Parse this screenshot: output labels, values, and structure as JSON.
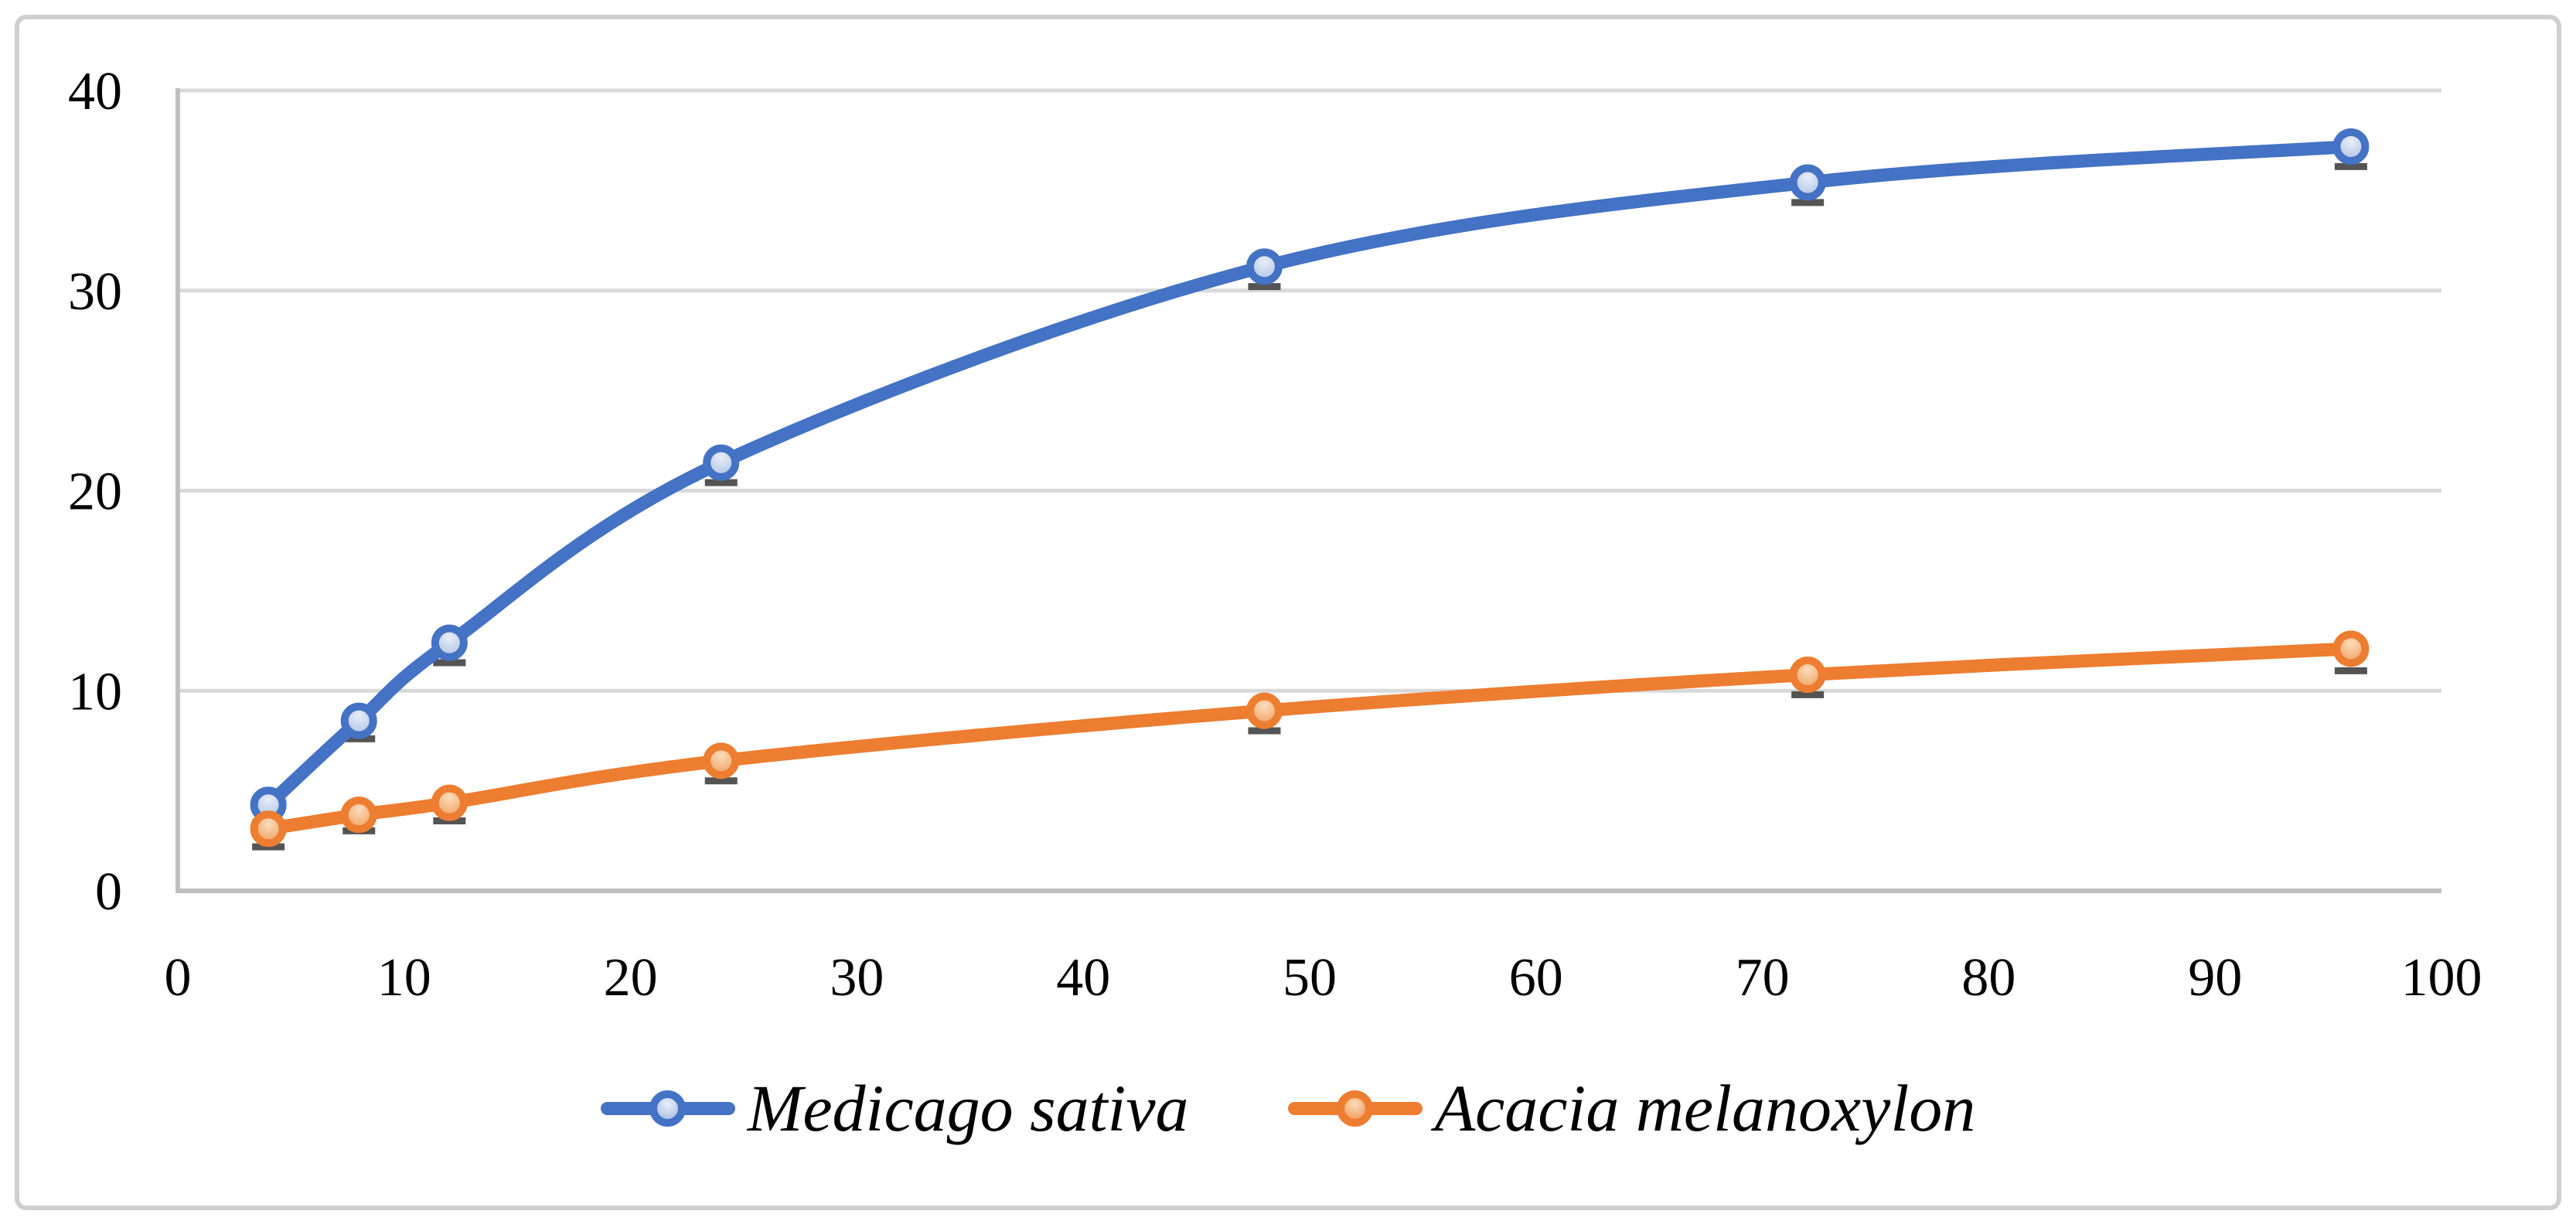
{
  "figure": {
    "background": "#FFFFFF",
    "border_color": "#D0CECE"
  },
  "chart_data": {
    "type": "line",
    "title": "",
    "xlabel": "",
    "ylabel": "",
    "x": [
      4,
      8,
      12,
      24,
      48,
      72,
      96
    ],
    "series": [
      {
        "name": "Medicago sativa",
        "color": "#4472C4",
        "marker_fill_light": "#E8EEF9",
        "marker_fill_dark": "#A9BFE2",
        "values": [
          4.3,
          8.5,
          12.4,
          21.4,
          31.2,
          35.4,
          37.2
        ],
        "error_minus": [
          0.9,
          0.9,
          1.0,
          1.0,
          1.0,
          1.0,
          1.0
        ]
      },
      {
        "name": "Acacia melanoxylon",
        "color": "#ED7D31",
        "marker_fill_light": "#FCDCBE",
        "marker_fill_dark": "#F09A55",
        "values": [
          3.1,
          3.8,
          4.4,
          6.5,
          9.0,
          10.8,
          12.1
        ],
        "error_minus": [
          0.9,
          0.8,
          0.9,
          1.0,
          1.0,
          1.0,
          1.1
        ]
      }
    ],
    "xlim": [
      0,
      100
    ],
    "ylim": [
      0,
      40
    ],
    "x_ticks": [
      0,
      10,
      20,
      30,
      40,
      50,
      60,
      70,
      80,
      90,
      100
    ],
    "y_ticks": [
      0,
      10,
      20,
      30,
      40
    ],
    "grid": "horizontal-only",
    "legend_position": "bottom-center",
    "line_style": "smooth",
    "colors": {
      "grid": "#D9D9D9",
      "axis": "#BFBFBF",
      "error_bar": "#545454",
      "text": "#000000"
    }
  }
}
